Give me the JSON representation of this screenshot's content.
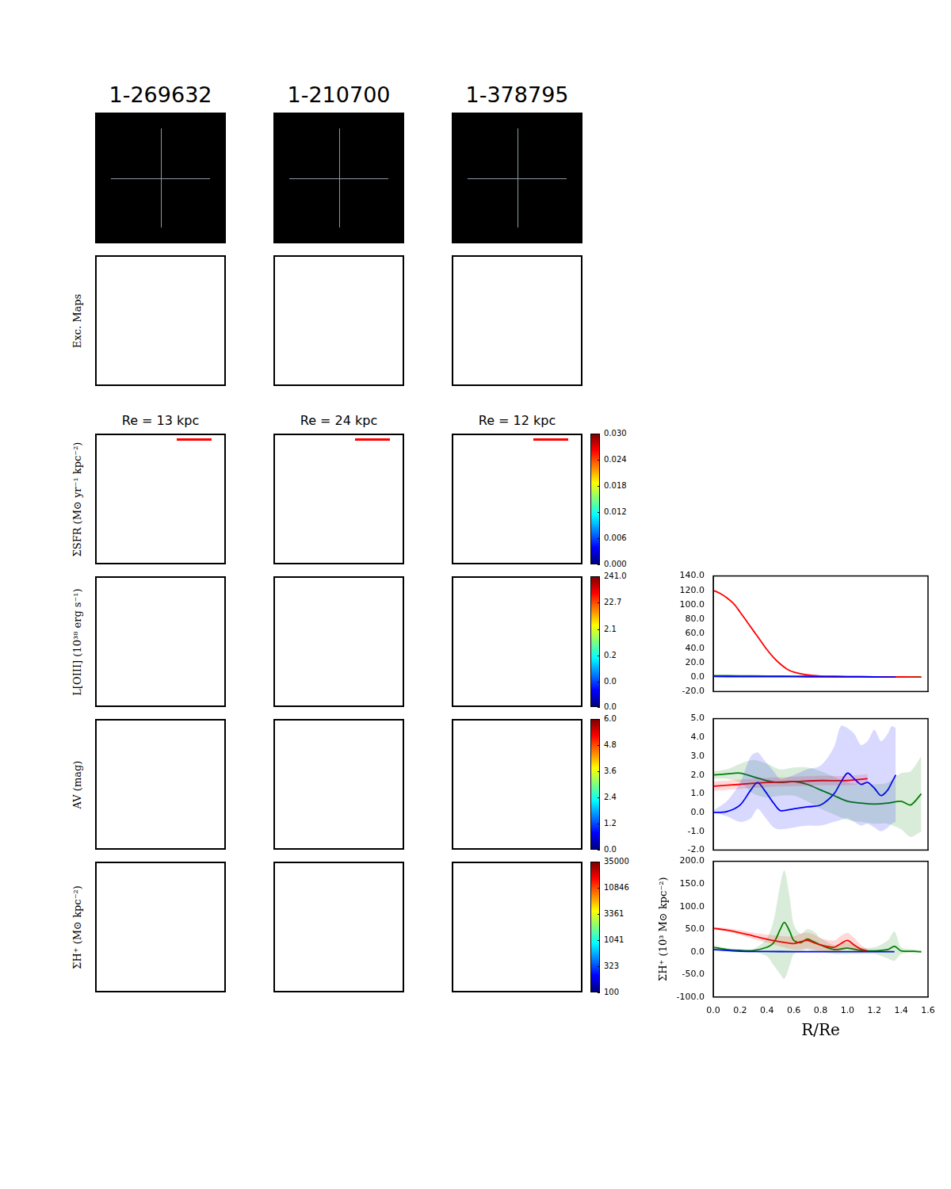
{
  "figure": {
    "columns": [
      "1-269632",
      "1-210700",
      "1-378795"
    ],
    "re_labels": [
      "Re = 13 kpc",
      "Re = 24 kpc",
      "Re = 12 kpc"
    ],
    "rows": [
      {
        "label": "Exc. Maps"
      },
      {
        "label": "ΣSFR (M⊙ yr⁻¹ kpc⁻²)",
        "colorbar": {
          "range": [
            0,
            0.03
          ],
          "ticks": [
            {
              "value": 0,
              "label": "0.000"
            },
            {
              "value": 0.006,
              "label": "0.006"
            },
            {
              "value": 0.012,
              "label": "0.012"
            },
            {
              "value": 0.018,
              "label": "0.018"
            },
            {
              "value": 0.024,
              "label": "0.024"
            },
            {
              "value": 0.03,
              "label": "0.030"
            }
          ]
        }
      },
      {
        "label": "L[OIII] (10³⁸ erg s⁻¹)",
        "colorbar": {
          "log": true,
          "range": [
            0.002,
            241.0
          ],
          "ticks": [
            {
              "value": 0.002,
              "label": "0.0"
            },
            {
              "value": 0.02,
              "label": "0.0"
            },
            {
              "value": 0.2,
              "label": "0.2"
            },
            {
              "value": 2.1,
              "label": "2.1"
            },
            {
              "value": 22.7,
              "label": "22.7"
            },
            {
              "value": 241.0,
              "label": "241.0"
            }
          ]
        }
      },
      {
        "label": "AV (mag)",
        "colorbar": {
          "range": [
            0,
            6
          ],
          "ticks": [
            {
              "value": 0,
              "label": "0.0"
            },
            {
              "value": 1.2,
              "label": "1.2"
            },
            {
              "value": 2.4,
              "label": "2.4"
            },
            {
              "value": 3.6,
              "label": "3.6"
            },
            {
              "value": 4.8,
              "label": "4.8"
            },
            {
              "value": 6,
              "label": "6.0"
            }
          ]
        }
      },
      {
        "label": "ΣH⁺ (M⊙ kpc⁻²)",
        "colorbar": {
          "log": true,
          "range": [
            100,
            35000
          ],
          "ticks": [
            100,
            323,
            1041,
            3361,
            10846,
            35000
          ]
        }
      }
    ]
  },
  "chart_data": [
    {
      "type": "line",
      "grid": false,
      "tick_labels": "y",
      "xlim": [
        0,
        1.6
      ],
      "ylim": [
        -20,
        140
      ],
      "yticks": [
        {
          "value": -20,
          "label": "-20.0"
        },
        {
          "value": 0,
          "label": "0.0"
        },
        {
          "value": 20,
          "label": "20.0"
        },
        {
          "value": 40,
          "label": "40.0"
        },
        {
          "value": 60,
          "label": "60.0"
        },
        {
          "value": 80,
          "label": "80.0"
        },
        {
          "value": 100,
          "label": "100.0"
        },
        {
          "value": 120,
          "label": "120.0"
        },
        {
          "value": 140,
          "label": "140.0"
        }
      ],
      "series": [
        {
          "color": "#0000ff",
          "x": [
            0,
            0.2,
            0.4,
            0.6,
            0.8,
            1.0,
            1.2,
            1.36
          ],
          "values": [
            0.8,
            0.7,
            0.6,
            0.5,
            0.4,
            0.3,
            0.2,
            0.1
          ]
        },
        {
          "color": "#ff0000",
          "x": [
            0,
            0.05,
            0.1,
            0.15,
            0.2,
            0.25,
            0.3,
            0.35,
            0.4,
            0.45,
            0.5,
            0.55,
            0.6,
            0.7,
            0.8,
            0.9,
            1.0,
            1.2,
            1.4,
            1.55
          ],
          "values": [
            120,
            116,
            110,
            102,
            90,
            77,
            64,
            51,
            38,
            27,
            18,
            11,
            7,
            3,
            1.5,
            1,
            0.7,
            0.4,
            0.2,
            0.1
          ]
        },
        {
          "color": "#008000",
          "x": [
            0,
            0.2,
            0.4,
            0.6,
            0.8,
            1.0,
            1.2,
            1.4,
            1.55
          ],
          "values": [
            2.0,
            1.8,
            1.5,
            1.2,
            0.9,
            0.6,
            0.4,
            0.2,
            0.1
          ]
        }
      ]
    },
    {
      "type": "line",
      "grid": false,
      "tick_labels": "y",
      "xlim": [
        0,
        1.6
      ],
      "ylim": [
        -2,
        5
      ],
      "yticks": [
        {
          "value": -2,
          "label": "-2.0"
        },
        {
          "value": -1,
          "label": "-1.0"
        },
        {
          "value": 0,
          "label": "0.0"
        },
        {
          "value": 1,
          "label": "1.0"
        },
        {
          "value": 2,
          "label": "2.0"
        },
        {
          "value": 3,
          "label": "3.0"
        },
        {
          "value": 4,
          "label": "4.0"
        },
        {
          "value": 5,
          "label": "5.0"
        }
      ],
      "series": [
        {
          "color": "#0000ff",
          "x": [
            0,
            0.1,
            0.2,
            0.28,
            0.33,
            0.38,
            0.45,
            0.5,
            0.6,
            0.7,
            0.8,
            0.9,
            0.95,
            1.0,
            1.05,
            1.1,
            1.15,
            1.2,
            1.25,
            1.3,
            1.33,
            1.36
          ],
          "values": [
            0,
            0.05,
            0.4,
            1.2,
            1.6,
            1.2,
            0.5,
            0.1,
            0.2,
            0.3,
            0.4,
            1.0,
            1.6,
            2.1,
            1.8,
            1.5,
            1.6,
            1.3,
            0.9,
            1.2,
            1.6,
            2.0
          ],
          "lower": [
            0,
            -0.2,
            -0.5,
            -0.3,
            0.2,
            -0.2,
            -0.8,
            -0.9,
            -0.8,
            -0.7,
            -0.7,
            -0.5,
            -0.4,
            -0.3,
            -0.5,
            -0.7,
            -0.6,
            -0.8,
            -1.0,
            -0.8,
            -0.6,
            -0.5
          ],
          "upper": [
            0.1,
            0.6,
            1.6,
            3.0,
            3.2,
            2.8,
            2.2,
            1.8,
            2.0,
            2.3,
            2.5,
            3.5,
            4.6,
            4.5,
            4.2,
            3.6,
            3.8,
            4.4,
            3.8,
            4.2,
            4.6,
            4.5
          ]
        },
        {
          "color": "#ff0000",
          "x": [
            0,
            0.2,
            0.4,
            0.6,
            0.8,
            1.0,
            1.15
          ],
          "values": [
            1.4,
            1.5,
            1.6,
            1.65,
            1.7,
            1.7,
            1.8
          ],
          "lower": [
            1.15,
            1.25,
            1.35,
            1.4,
            1.45,
            1.45,
            1.55
          ],
          "upper": [
            1.65,
            1.75,
            1.85,
            1.9,
            1.95,
            1.95,
            2.05
          ]
        },
        {
          "color": "#008000",
          "x": [
            0,
            0.1,
            0.2,
            0.3,
            0.4,
            0.5,
            0.6,
            0.7,
            0.8,
            0.9,
            1.0,
            1.1,
            1.2,
            1.3,
            1.4,
            1.47,
            1.55
          ],
          "values": [
            2.0,
            2.05,
            2.1,
            1.9,
            1.7,
            1.6,
            1.65,
            1.5,
            1.2,
            0.9,
            0.6,
            0.5,
            0.45,
            0.5,
            0.6,
            0.4,
            1.0
          ],
          "lower": [
            1.8,
            1.8,
            1.6,
            1.0,
            0.8,
            0.9,
            0.9,
            0.6,
            0.2,
            -0.1,
            -0.4,
            -0.5,
            -0.6,
            -0.6,
            -0.9,
            -1.3,
            -1.0
          ],
          "upper": [
            2.2,
            2.3,
            2.6,
            2.8,
            2.6,
            2.3,
            2.4,
            2.4,
            2.2,
            1.9,
            1.6,
            1.5,
            1.5,
            1.6,
            2.1,
            2.2,
            3.0
          ]
        }
      ]
    },
    {
      "type": "line",
      "grid": false,
      "tick_labels": true,
      "xlabel": "R/Re",
      "ylabel": "ΣH⁺ (10³ M⊙ kpc⁻²)",
      "xlim": [
        0,
        1.6
      ],
      "ylim": [
        -100,
        200
      ],
      "xticks": [
        {
          "value": 0,
          "label": "0.0"
        },
        {
          "value": 0.2,
          "label": "0.2"
        },
        {
          "value": 0.4,
          "label": "0.4"
        },
        {
          "value": 0.6,
          "label": "0.6"
        },
        {
          "value": 0.8,
          "label": "0.8"
        },
        {
          "value": 1.0,
          "label": "1.0"
        },
        {
          "value": 1.2,
          "label": "1.2"
        },
        {
          "value": 1.4,
          "label": "1.4"
        },
        {
          "value": 1.6,
          "label": "1.6"
        }
      ],
      "yticks": [
        {
          "value": -100,
          "label": "-100.0"
        },
        {
          "value": -50,
          "label": "-50.0"
        },
        {
          "value": 0,
          "label": "0.0"
        },
        {
          "value": 50,
          "label": "50.0"
        },
        {
          "value": 100,
          "label": "100.0"
        },
        {
          "value": 150,
          "label": "150.0"
        },
        {
          "value": 200,
          "label": "200.0"
        }
      ],
      "series": [
        {
          "color": "#0000ff",
          "x": [
            0,
            0.2,
            0.4,
            0.6,
            0.8,
            1.0,
            1.2,
            1.35
          ],
          "values": [
            5,
            1,
            0.5,
            0.3,
            0.2,
            0.2,
            0.1,
            0.1
          ]
        },
        {
          "color": "#ff0000",
          "x": [
            0,
            0.1,
            0.2,
            0.3,
            0.4,
            0.5,
            0.6,
            0.65,
            0.7,
            0.75,
            0.8,
            0.9,
            0.95,
            1.0,
            1.05,
            1.1,
            1.15
          ],
          "values": [
            52,
            48,
            42,
            35,
            28,
            22,
            18,
            22,
            25,
            20,
            15,
            10,
            18,
            25,
            15,
            6,
            2
          ],
          "lower": [
            50,
            45,
            37,
            28,
            20,
            12,
            5,
            5,
            8,
            5,
            2,
            0,
            2,
            8,
            2,
            0,
            0
          ],
          "upper": [
            55,
            52,
            48,
            42,
            38,
            35,
            34,
            40,
            42,
            38,
            30,
            25,
            35,
            42,
            30,
            15,
            5
          ]
        },
        {
          "color": "#008000",
          "x": [
            0,
            0.1,
            0.2,
            0.3,
            0.4,
            0.45,
            0.5,
            0.53,
            0.57,
            0.6,
            0.65,
            0.7,
            0.75,
            0.8,
            0.9,
            1.0,
            1.1,
            1.2,
            1.3,
            1.35,
            1.4,
            1.5,
            1.55
          ],
          "values": [
            10,
            5,
            3,
            3,
            10,
            20,
            50,
            65,
            45,
            25,
            20,
            28,
            22,
            15,
            5,
            8,
            3,
            2,
            5,
            12,
            2,
            1,
            0
          ],
          "lower": [
            5,
            2,
            0,
            0,
            -10,
            -30,
            -50,
            -60,
            -30,
            -5,
            0,
            5,
            0,
            0,
            -5,
            -5,
            -5,
            -5,
            -15,
            -20,
            -5,
            -2,
            -1
          ],
          "upper": [
            15,
            8,
            6,
            6,
            30,
            70,
            150,
            180,
            120,
            60,
            40,
            50,
            45,
            30,
            15,
            20,
            10,
            10,
            25,
            45,
            10,
            5,
            2
          ]
        }
      ]
    }
  ]
}
